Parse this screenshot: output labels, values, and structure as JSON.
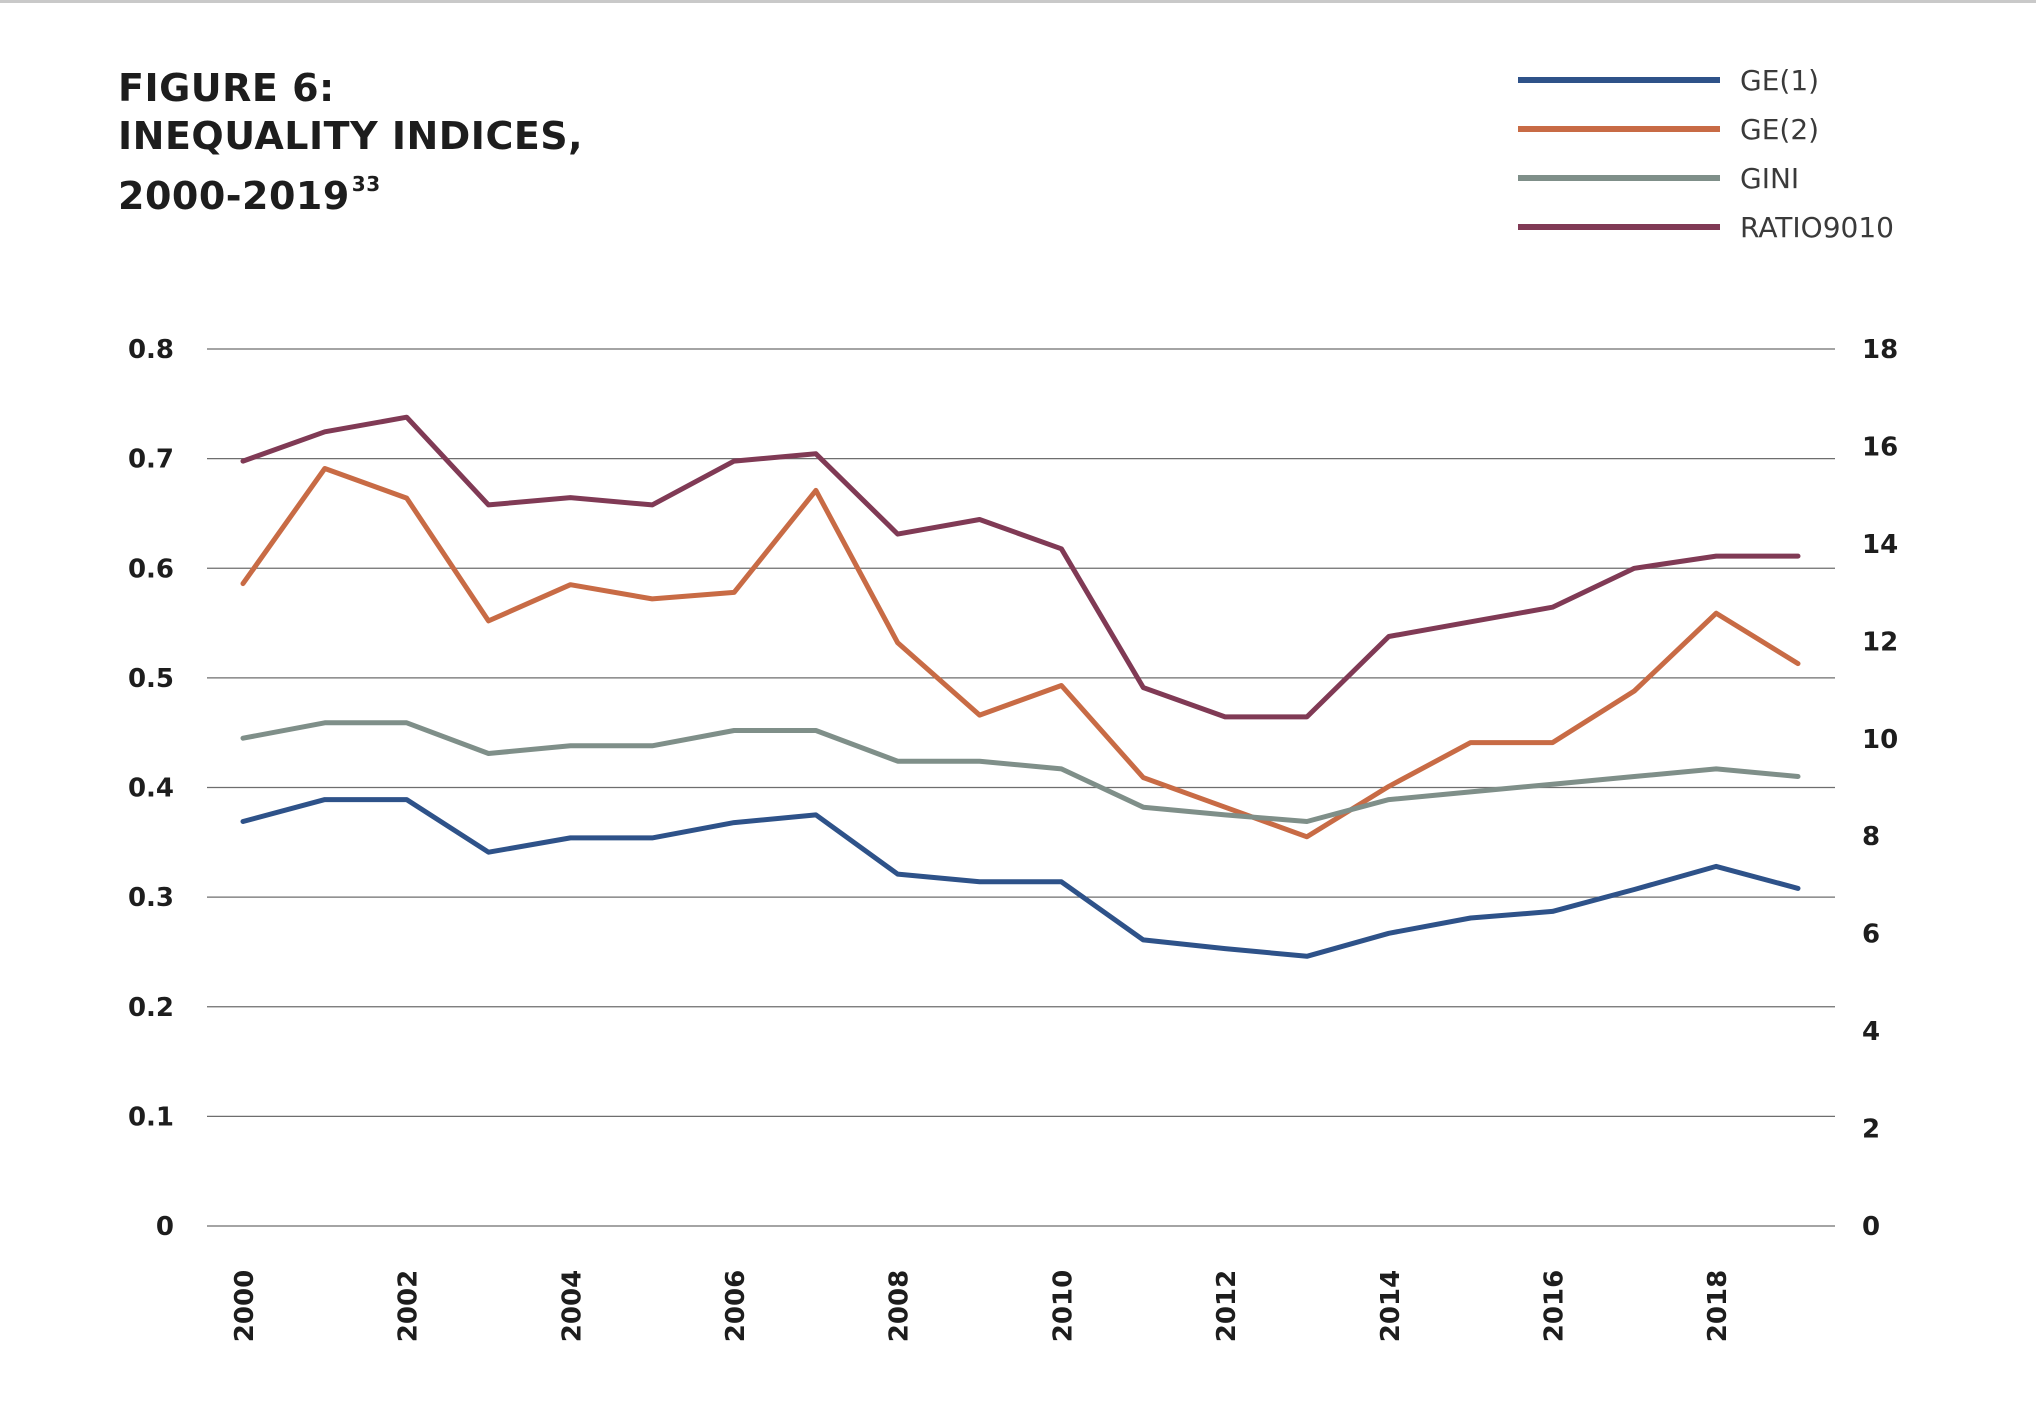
{
  "title": {
    "line1": "FIGURE 6:",
    "line2": "INEQUALITY INDICES,",
    "line3": "2000-2019",
    "footnote": "33"
  },
  "chart_data": {
    "type": "line",
    "x": [
      2000,
      2001,
      2002,
      2003,
      2004,
      2005,
      2006,
      2007,
      2008,
      2009,
      2010,
      2011,
      2012,
      2013,
      2014,
      2015,
      2016,
      2017,
      2018,
      2019
    ],
    "x_tick_labels": [
      "2000",
      "2002",
      "2004",
      "2006",
      "2008",
      "2010",
      "2012",
      "2014",
      "2016",
      "2018"
    ],
    "y_left": {
      "range": [
        0,
        0.8
      ],
      "tick_labels": [
        "0",
        "0.1",
        "0.2",
        "0.3",
        "0.4",
        "0.5",
        "0.6",
        "0.7",
        "0.8"
      ]
    },
    "y_right": {
      "range": [
        0,
        18
      ],
      "tick_labels": [
        "0",
        "2",
        "4",
        "6",
        "8",
        "10",
        "12",
        "14",
        "16",
        "18"
      ]
    },
    "grid": true,
    "legend_position": "top-right",
    "series": [
      {
        "name": "GE(1)",
        "axis": "left",
        "color": "#2e5289",
        "values": [
          0.369,
          0.389,
          0.389,
          0.341,
          0.354,
          0.354,
          0.368,
          0.375,
          0.321,
          0.314,
          0.314,
          0.261,
          0.253,
          0.246,
          0.267,
          0.281,
          0.287,
          0.307,
          0.328,
          0.308
        ]
      },
      {
        "name": "GE(2)",
        "axis": "left",
        "color": "#c86b45",
        "values": [
          0.586,
          0.691,
          0.664,
          0.552,
          0.585,
          0.572,
          0.578,
          0.671,
          0.532,
          0.466,
          0.493,
          0.409,
          0.382,
          0.355,
          0.401,
          0.441,
          0.441,
          0.488,
          0.559,
          0.513
        ]
      },
      {
        "name": "GINI",
        "axis": "left",
        "color": "#7f8f89",
        "values": [
          0.445,
          0.459,
          0.459,
          0.431,
          0.438,
          0.438,
          0.452,
          0.452,
          0.424,
          0.424,
          0.417,
          0.382,
          0.375,
          0.369,
          0.389,
          0.396,
          0.403,
          0.41,
          0.417,
          0.41
        ]
      },
      {
        "name": "RATIO9010",
        "axis": "right",
        "color": "#803a55",
        "values": [
          15.7,
          16.3,
          16.6,
          14.8,
          14.95,
          14.8,
          15.7,
          15.85,
          14.2,
          14.5,
          13.9,
          11.05,
          10.45,
          10.45,
          12.1,
          12.4,
          12.7,
          13.5,
          13.75,
          13.75
        ]
      }
    ]
  }
}
